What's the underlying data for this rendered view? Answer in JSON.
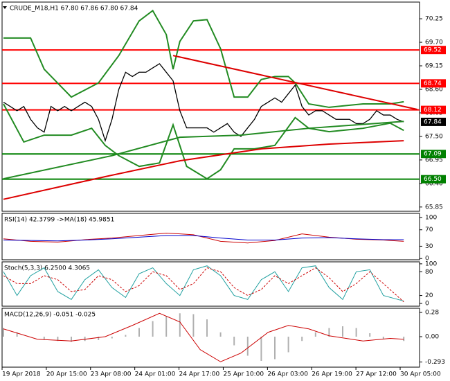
{
  "chart_data": [
    {
      "type": "line",
      "title": "CRUDE_M18,H1  67.80 67.86 67.80 67.84",
      "ylim": [
        65.75,
        70.64
      ],
      "yticks": [
        70.25,
        {
          "value": 69.7,
          "label": "69.70"
        },
        69.15,
        {
          "value": 68.6,
          "label": "68.60"
        },
        68.05,
        {
          "value": 67.5,
          "label": "67.50"
        },
        66.95,
        {
          "value": 66.4,
          "label": "66.40"
        },
        65.85
      ],
      "series": [
        {
          "color": "#000000",
          "width": 1.3,
          "values": [
            68.3,
            68.2,
            68.1,
            68.2,
            67.9,
            67.7,
            67.6,
            68.2,
            68.1,
            68.2,
            68.1,
            68.2,
            68.3,
            68.2,
            67.9,
            67.4,
            67.9,
            68.6,
            69.0,
            68.9,
            69.0,
            69.0,
            69.1,
            69.2,
            69.0,
            68.8,
            68.1,
            67.7,
            67.7,
            67.7,
            67.7,
            67.6,
            67.7,
            67.8,
            67.6,
            67.5,
            67.7,
            67.9,
            68.2,
            68.3,
            68.4,
            68.3,
            68.5,
            68.7,
            68.2,
            68.0,
            68.1,
            68.1,
            68.0,
            67.9,
            67.9,
            67.9,
            67.8,
            67.8,
            67.9,
            68.1,
            68.0,
            68.0,
            67.9,
            67.84
          ]
        },
        {
          "color": "#228b22",
          "width": 2,
          "x": [
            0,
            4,
            6,
            10,
            14,
            17,
            20,
            22,
            24,
            25,
            26,
            28,
            30,
            32,
            34,
            36,
            38,
            40,
            42,
            43,
            45,
            48,
            53,
            57,
            59
          ],
          "values": [
            69.8,
            69.8,
            69.07,
            68.42,
            68.75,
            69.39,
            70.2,
            70.44,
            69.88,
            69.07,
            69.72,
            70.2,
            70.23,
            69.55,
            68.42,
            68.42,
            68.83,
            68.9,
            68.9,
            68.75,
            68.26,
            68.18,
            68.26,
            68.26,
            68.31
          ]
        },
        {
          "color": "#228b22",
          "width": 2,
          "x": [
            0,
            3,
            6,
            10,
            13,
            15,
            17,
            20,
            23,
            25,
            27,
            30,
            32,
            34,
            37,
            40,
            43,
            45,
            48,
            53,
            57,
            59
          ],
          "values": [
            68.26,
            67.37,
            67.53,
            67.53,
            67.69,
            67.29,
            67.05,
            66.8,
            66.88,
            67.77,
            66.8,
            66.51,
            66.72,
            67.21,
            67.21,
            67.29,
            67.94,
            67.69,
            67.61,
            67.69,
            67.81,
            67.64
          ]
        },
        {
          "color": "#228b22",
          "width": 2,
          "x": [
            0,
            16,
            26,
            35,
            45,
            59
          ],
          "values": [
            66.51,
            67.05,
            67.48,
            67.53,
            67.69,
            67.85
          ]
        },
        {
          "color": "#dd0000",
          "width": 2,
          "x": [
            0,
            15,
            26,
            38,
            48,
            59
          ],
          "values": [
            66.03,
            66.56,
            66.93,
            67.21,
            67.32,
            67.4
          ]
        },
        {
          "color": "#dd0000",
          "width": 2,
          "x": [
            25,
            61
          ],
          "values": [
            69.39,
            68.13
          ]
        }
      ],
      "hlines": [
        {
          "value": 69.52,
          "color": "#ff0000"
        },
        {
          "value": 68.74,
          "color": "#ff0000"
        },
        {
          "value": 68.12,
          "color": "#ff0000"
        },
        {
          "value": 67.09,
          "color": "#008000"
        },
        {
          "value": 66.5,
          "label": "66.50",
          "color": "#008000"
        }
      ],
      "last": {
        "value": 67.84,
        "color": "#000000"
      },
      "x_labels": [
        "19 Apr 2018",
        "20 Apr 15:00",
        "23 Apr 08:00",
        "24 Apr 01:00",
        "24 Apr 17:00",
        "25 Apr 10:00",
        "26 Apr 03:00",
        "26 Apr 19:00",
        "27 Apr 12:00",
        "30 Apr 05:00"
      ]
    },
    {
      "type": "line",
      "title": "RSI(14) 42.3799  ->MA(18) 45.9851",
      "ylim": [
        -3,
        110
      ],
      "yticks": [
        100,
        70,
        30,
        0
      ],
      "series": [
        {
          "color": "#cc0000",
          "width": 1,
          "x": [
            0,
            4,
            8,
            12,
            16,
            20,
            24,
            28,
            32,
            36,
            40,
            44,
            48,
            52,
            56,
            59
          ],
          "values": [
            48,
            42,
            40,
            46,
            50,
            56,
            62,
            58,
            42,
            38,
            44,
            60,
            52,
            47,
            45,
            42
          ]
        },
        {
          "color": "#0000cc",
          "width": 1,
          "x": [
            0,
            4,
            8,
            12,
            16,
            20,
            24,
            28,
            32,
            36,
            40,
            44,
            48,
            52,
            56,
            59
          ],
          "values": [
            45,
            44,
            43,
            45,
            48,
            52,
            56,
            56,
            50,
            45,
            45,
            50,
            51,
            48,
            46,
            46
          ]
        }
      ]
    },
    {
      "type": "line",
      "title": "Stoch(5,3,3) 6.2500 4.3065",
      "ylim": [
        -7,
        105
      ],
      "yticks": [
        100,
        80,
        20,
        0
      ],
      "series": [
        {
          "color": "#20a0a0",
          "width": 1,
          "x": [
            0,
            2,
            4,
            6,
            8,
            10,
            12,
            14,
            16,
            18,
            20,
            22,
            24,
            26,
            28,
            30,
            32,
            34,
            36,
            38,
            40,
            42,
            44,
            46,
            48,
            50,
            52,
            54,
            56,
            59
          ],
          "values": [
            80,
            20,
            70,
            90,
            30,
            10,
            60,
            85,
            40,
            15,
            75,
            90,
            50,
            20,
            85,
            95,
            70,
            20,
            10,
            60,
            80,
            30,
            90,
            95,
            40,
            10,
            80,
            85,
            20,
            6
          ]
        },
        {
          "color": "#cc0000",
          "width": 1,
          "dash": true,
          "x": [
            0,
            2,
            4,
            6,
            8,
            10,
            12,
            14,
            16,
            18,
            20,
            22,
            24,
            26,
            28,
            30,
            32,
            34,
            36,
            38,
            40,
            42,
            44,
            46,
            48,
            50,
            52,
            54,
            56,
            59
          ],
          "values": [
            70,
            50,
            50,
            70,
            60,
            30,
            35,
            70,
            60,
            30,
            45,
            80,
            70,
            35,
            50,
            90,
            80,
            40,
            20,
            35,
            70,
            50,
            70,
            90,
            65,
            30,
            50,
            80,
            50,
            4
          ]
        }
      ]
    },
    {
      "type": "line",
      "title": "MACD(12,26,9) -0.051 -0.025",
      "ylim": [
        -0.352,
        0.328
      ],
      "yticks": [
        0.28,
        {
          "value": 0,
          "label": "0.00"
        },
        -0.293
      ],
      "series": [
        {
          "type": "bar",
          "color": "#b0b0b0",
          "x": [
            0,
            2,
            4,
            6,
            8,
            10,
            12,
            14,
            16,
            18,
            20,
            22,
            24,
            26,
            28,
            30,
            32,
            34,
            36,
            38,
            40,
            42,
            44,
            46,
            48,
            50,
            52,
            54,
            56,
            59
          ],
          "values": [
            0.1,
            0.05,
            0,
            -0.03,
            -0.05,
            -0.06,
            -0.05,
            -0.04,
            -0.02,
            0.02,
            0.1,
            0.18,
            0.24,
            0.27,
            0.26,
            0.2,
            0.05,
            -0.1,
            -0.22,
            -0.28,
            -0.26,
            -0.18,
            -0.05,
            0.05,
            0.1,
            0.12,
            0.1,
            0.04,
            -0.03,
            -0.05
          ]
        },
        {
          "color": "#cc0000",
          "width": 1,
          "x": [
            0,
            5,
            10,
            15,
            19,
            23,
            26,
            29,
            32,
            35,
            39,
            42,
            45,
            48,
            53,
            57,
            59
          ],
          "values": [
            0.09,
            -0.03,
            -0.05,
            0.0,
            0.13,
            0.27,
            0.17,
            -0.15,
            -0.29,
            -0.19,
            0.05,
            0.13,
            0.09,
            0.01,
            -0.05,
            -0.02,
            -0.03
          ]
        }
      ]
    }
  ]
}
